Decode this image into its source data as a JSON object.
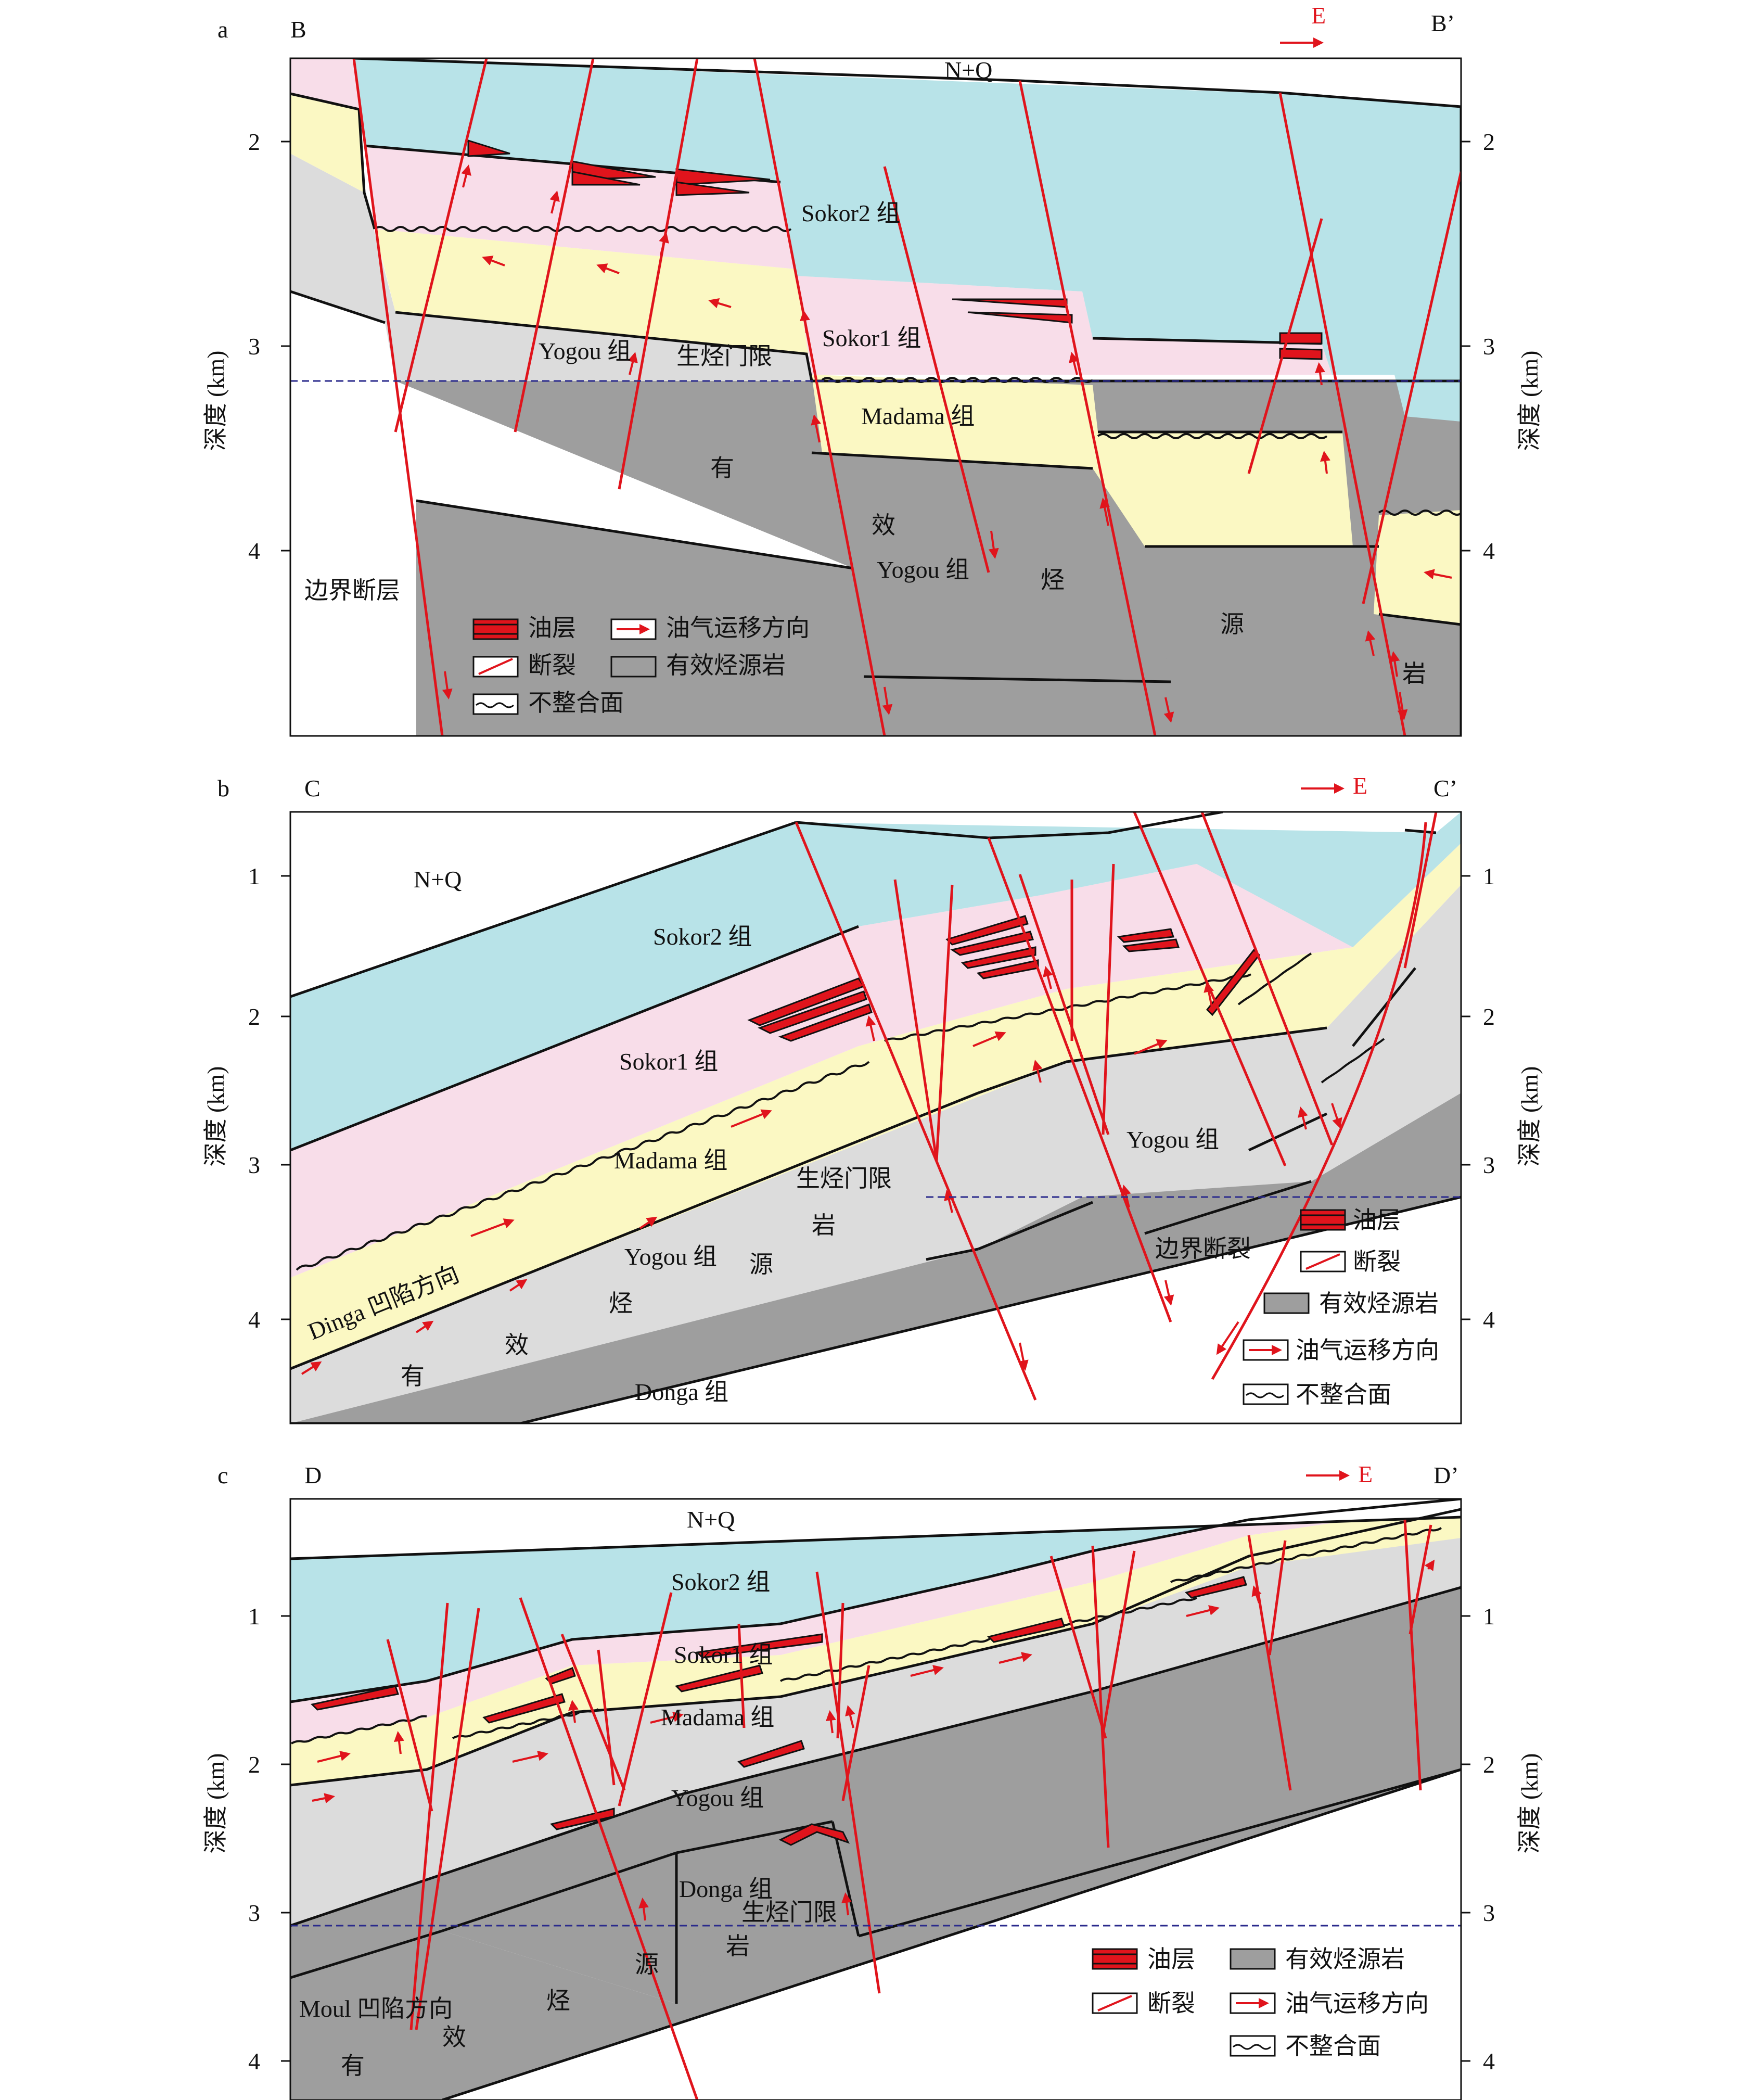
{
  "colors": {
    "nq": "#ffffff",
    "sokor2": "#b8e3e8",
    "sokor1": "#f8dde9",
    "madama": "#fbf8c3",
    "yogou": "#dcdcdc",
    "source_rock": "#9e9e9e",
    "fault": "#e0141c",
    "oil": "#e0141c",
    "threshold": "#2a2a8c"
  },
  "axis_label": "深度 (km)",
  "east_label": "E",
  "panels": [
    {
      "letter": "a",
      "left_end": "B",
      "right_end": "B’",
      "ticks": [
        "2",
        "3",
        "4"
      ],
      "labels": {
        "nq": "N+Q",
        "sokor2": "Sokor2 组",
        "sokor1": "Sokor1 组",
        "madama": "Madama 组",
        "yogou_upper": "Yogou 组",
        "yogou_lower": "Yogou 组",
        "threshold": "生烃门限",
        "boundary_fault": "边界断层",
        "src_1": "有",
        "src_2": "效",
        "src_3": "烃",
        "src_4": "源",
        "src_5": "岩"
      },
      "legend": [
        "油层",
        "油气运移方向",
        "断裂",
        "有效烃源岩",
        "不整合面"
      ]
    },
    {
      "letter": "b",
      "left_end": "C",
      "right_end": "C’",
      "ticks": [
        "1",
        "2",
        "3",
        "4"
      ],
      "labels": {
        "nq": "N+Q",
        "sokor2": "Sokor2 组",
        "sokor1": "Sokor1 组",
        "madama": "Madama 组",
        "threshold": "生烃门限",
        "dinga": "Dinga 凹陷方向",
        "yogou_lower": "Yogou 组",
        "yogou_upper": "Yogou 组",
        "donga": "Donga 组",
        "boundary_fault": "边界断裂",
        "src_1": "有",
        "src_2": "效",
        "src_3": "烃",
        "src_4": "源",
        "src_5": "岩"
      },
      "legend": [
        "油层",
        "断裂",
        "有效烃源岩",
        "油气运移方向",
        "不整合面"
      ]
    },
    {
      "letter": "c",
      "left_end": "D",
      "right_end": "D’",
      "ticks": [
        "1",
        "2",
        "3",
        "4"
      ],
      "labels": {
        "nq": "N+Q",
        "sokor2": "Sokor2 组",
        "sokor1": "Sokor1 组",
        "madama": "Madama 组",
        "yogou": "Yogou 组",
        "donga": "Donga 组",
        "threshold": "生烃门限",
        "moul": "Moul 凹陷方向",
        "src_1": "有",
        "src_2": "效",
        "src_3": "烃",
        "src_4": "源",
        "src_5": "岩"
      },
      "legend": [
        "油层",
        "有效烃源岩",
        "断裂",
        "油气运移方向",
        "不整合面"
      ]
    }
  ]
}
